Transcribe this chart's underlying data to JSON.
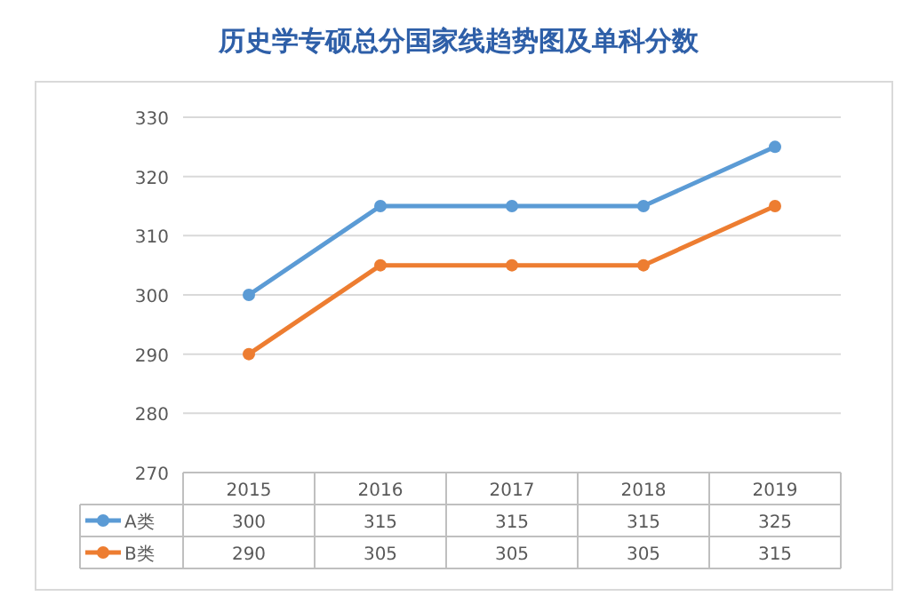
{
  "chart_data": {
    "type": "line",
    "title": "历史学专硕总分国家线趋势图及单科分数",
    "categories": [
      "2015",
      "2016",
      "2017",
      "2018",
      "2019"
    ],
    "series": [
      {
        "name": "A类",
        "color": "#5b9bd5",
        "values": [
          300,
          315,
          315,
          315,
          325
        ]
      },
      {
        "name": "B类",
        "color": "#ed7d31",
        "values": [
          290,
          305,
          305,
          305,
          315
        ]
      }
    ],
    "ylim": [
      270,
      330
    ],
    "yticks": [
      270,
      280,
      290,
      300,
      310,
      320,
      330
    ],
    "grid": "y",
    "marker": "circle",
    "line_style": "solid",
    "legend": "bottom",
    "data_labels": true
  }
}
